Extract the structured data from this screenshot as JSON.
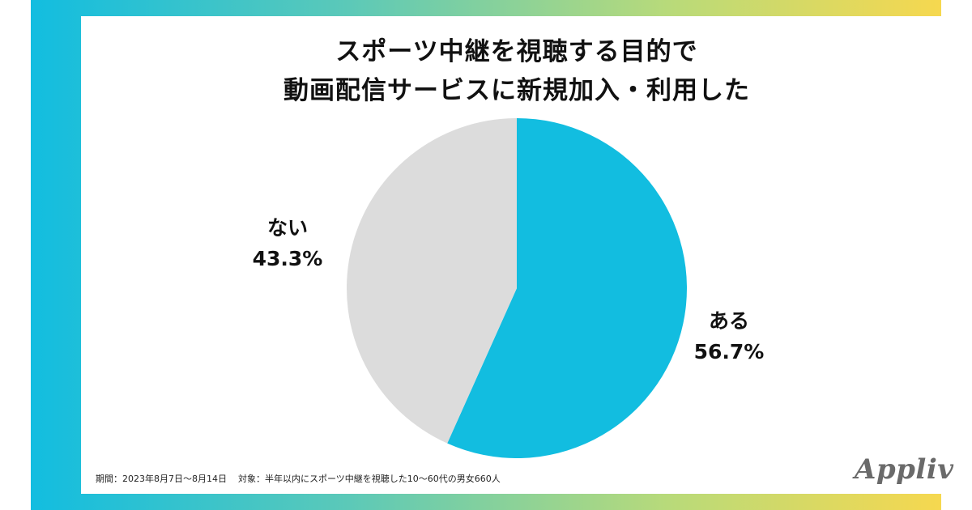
{
  "title": {
    "line1": "スポーツ中継を視聴する目的で",
    "line2": "動画配信サービスに新規加入・利用した"
  },
  "footnote": {
    "period": "期間：2023年8月7日〜8月14日",
    "target": "対象：半年以内にスポーツ中継を視聴した10〜60代の男女660人"
  },
  "brand": {
    "logo_text": "Appliv"
  },
  "colors": {
    "frame_left": "#12bde0",
    "frame_right": "#f6d84f",
    "slice_yes": "#12bde0",
    "slice_no": "#dcdcdc"
  },
  "chart_data": {
    "type": "pie",
    "title": "スポーツ中継を視聴する目的で動画配信サービスに新規加入・利用した",
    "slices": [
      {
        "label": "ある",
        "value": 56.7,
        "value_label": "56.7%",
        "color": "#12bde0"
      },
      {
        "label": "ない",
        "value": 43.3,
        "value_label": "43.3%",
        "color": "#dcdcdc"
      }
    ],
    "start_angle": "12 o'clock",
    "direction": "clockwise",
    "labels_position": "outside"
  }
}
